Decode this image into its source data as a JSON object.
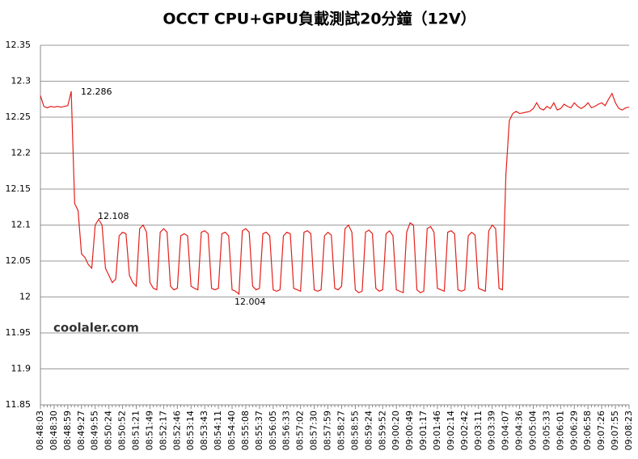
{
  "chart_data": {
    "type": "line",
    "title": "OCCT CPU+GPU負載測試20分鐘（12V）",
    "watermark": "coolaler.com",
    "annotations": [
      "12.286",
      "12.108",
      "12.004"
    ],
    "color": "#e3201b",
    "grid": true,
    "ylim": [
      11.85,
      12.35
    ],
    "yticks": [
      11.85,
      11.9,
      11.95,
      12,
      12.05,
      12.1,
      12.15,
      12.2,
      12.25,
      12.3,
      12.35
    ],
    "categories": [
      "08:48:03",
      null,
      null,
      null,
      "08:48:30",
      null,
      null,
      null,
      "08:48:59",
      null,
      null,
      null,
      "08:49:27",
      null,
      null,
      null,
      "08:49:55",
      null,
      null,
      null,
      "08:50:24",
      null,
      null,
      null,
      "08:50:52",
      null,
      null,
      null,
      "08:51:21",
      null,
      null,
      null,
      "08:51:49",
      null,
      null,
      null,
      "08:52:17",
      null,
      null,
      null,
      "08:52:46",
      null,
      null,
      null,
      "08:53:14",
      null,
      null,
      null,
      "08:53:43",
      null,
      null,
      null,
      "08:54:11",
      null,
      null,
      null,
      "08:54:40",
      null,
      null,
      null,
      "08:55:08",
      null,
      null,
      null,
      "08:55:37",
      null,
      null,
      null,
      "08:56:05",
      null,
      null,
      null,
      "08:56:33",
      null,
      null,
      null,
      "08:57:02",
      null,
      null,
      null,
      "08:57:30",
      null,
      null,
      null,
      "08:57:59",
      null,
      null,
      null,
      "08:58:27",
      null,
      null,
      null,
      "08:58:55",
      null,
      null,
      null,
      "08:59:24",
      null,
      null,
      null,
      "08:59:52",
      null,
      null,
      null,
      "09:00:20",
      null,
      null,
      null,
      "09:00:49",
      null,
      null,
      null,
      "09:01:17",
      null,
      null,
      null,
      "09:01:46",
      null,
      null,
      null,
      "09:02:14",
      null,
      null,
      null,
      "09:02:42",
      null,
      null,
      null,
      "09:03:11",
      null,
      null,
      null,
      "09:03:39",
      null,
      null,
      null,
      "09:04:07",
      null,
      null,
      null,
      "09:04:36",
      null,
      null,
      null,
      "09:05:04",
      null,
      null,
      null,
      "09:05:33",
      null,
      null,
      null,
      "09:06:01",
      null,
      null,
      null,
      "09:06:29",
      null,
      null,
      null,
      "09:06:58",
      null,
      null,
      null,
      "09:07:26",
      null,
      null,
      null,
      "09:07:55",
      null,
      null,
      null,
      "09:08:23"
    ],
    "values": [
      12.28,
      12.265,
      12.263,
      12.265,
      12.264,
      12.265,
      12.264,
      12.265,
      12.266,
      12.286,
      12.13,
      12.12,
      12.06,
      12.055,
      12.045,
      12.04,
      12.1,
      12.108,
      12.1,
      12.04,
      12.03,
      12.02,
      12.025,
      12.085,
      12.09,
      12.088,
      12.03,
      12.02,
      12.015,
      12.095,
      12.1,
      12.09,
      12.02,
      12.012,
      12.01,
      12.09,
      12.095,
      12.09,
      12.015,
      12.01,
      12.012,
      12.085,
      12.088,
      12.085,
      12.015,
      12.012,
      12.01,
      12.09,
      12.092,
      12.088,
      12.012,
      12.01,
      12.012,
      12.088,
      12.09,
      12.085,
      12.01,
      12.008,
      12.004,
      12.092,
      12.095,
      12.09,
      12.015,
      12.01,
      12.012,
      12.088,
      12.09,
      12.085,
      12.01,
      12.008,
      12.01,
      12.085,
      12.09,
      12.088,
      12.012,
      12.01,
      12.008,
      12.09,
      12.092,
      12.088,
      12.01,
      12.008,
      12.01,
      12.085,
      12.09,
      12.086,
      12.012,
      12.01,
      12.015,
      12.095,
      12.1,
      12.09,
      12.01,
      12.006,
      12.008,
      12.09,
      12.093,
      12.088,
      12.012,
      12.008,
      12.01,
      12.088,
      12.092,
      12.085,
      12.01,
      12.008,
      12.006,
      12.09,
      12.103,
      12.1,
      12.01,
      12.006,
      12.008,
      12.095,
      12.098,
      12.09,
      12.012,
      12.01,
      12.008,
      12.09,
      12.092,
      12.088,
      12.01,
      12.008,
      12.01,
      12.085,
      12.09,
      12.086,
      12.012,
      12.01,
      12.008,
      12.092,
      12.1,
      12.095,
      12.012,
      12.01,
      12.17,
      12.245,
      12.255,
      12.258,
      12.255,
      12.256,
      12.257,
      12.258,
      12.262,
      12.27,
      12.262,
      12.26,
      12.265,
      12.262,
      12.27,
      12.26,
      12.262,
      12.268,
      12.265,
      12.263,
      12.27,
      12.265,
      12.262,
      12.265,
      12.27,
      12.263,
      12.265,
      12.268,
      12.27,
      12.266,
      12.275,
      12.283,
      12.27,
      12.262,
      12.26,
      12.263,
      12.264
    ]
  }
}
